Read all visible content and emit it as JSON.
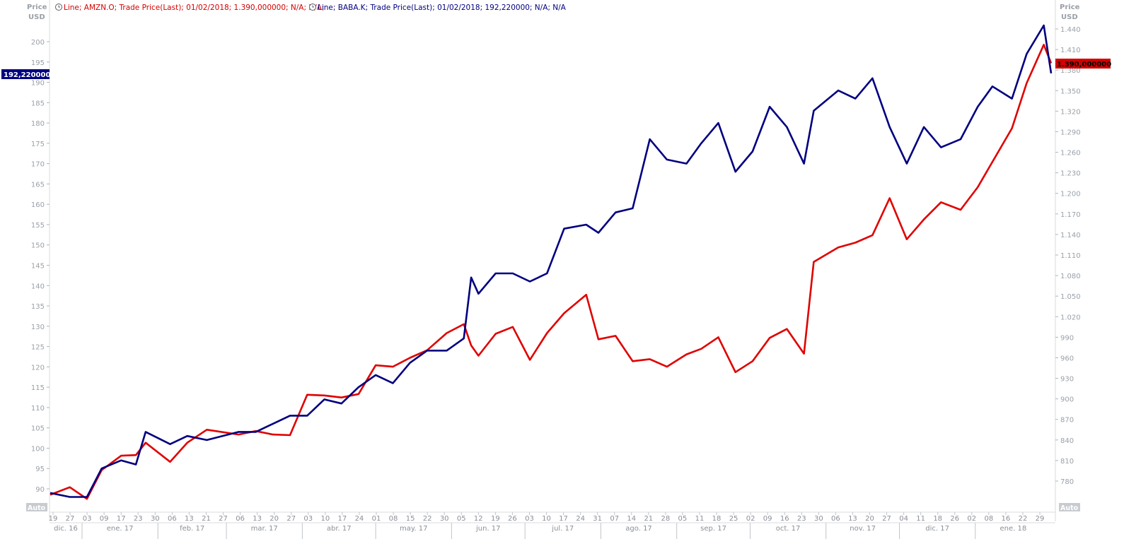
{
  "legend": [
    {
      "text": "Line; AMZN.O; Trade Price(Last); 01/02/2018; 1.390,000000; N/A; N/A;",
      "color": "#d40000",
      "icon": "clock-icon"
    },
    {
      "text": "Line; BABA.K; Trade Price(Last); 01/02/2018; 192,220000; N/A; N/A",
      "color": "#000080",
      "icon": "clock-icon"
    }
  ],
  "left_axis": {
    "title_line1": "Price",
    "title_line2": "USD",
    "auto_label": "Auto"
  },
  "right_axis": {
    "title_line1": "Price",
    "title_line2": "USD",
    "auto_label": "Auto"
  },
  "tags": {
    "left": {
      "text": "192,220000",
      "color": "#000080"
    },
    "right": {
      "text": "1.390,000000",
      "color": "#d40000"
    }
  },
  "colors": {
    "amzn": "#e00000",
    "baba": "#000080",
    "axis": "#9aa0a8"
  },
  "chart_data": {
    "type": "line",
    "title": "",
    "yaxis_left": {
      "series": "BABA.K",
      "ylim": [
        86,
        206
      ],
      "ticks": [
        90,
        95,
        100,
        105,
        110,
        115,
        120,
        125,
        130,
        135,
        140,
        145,
        150,
        155,
        160,
        165,
        170,
        175,
        180,
        185,
        190,
        195,
        200
      ]
    },
    "yaxis_right": {
      "series": "AMZN.O",
      "ylim": [
        740,
        1470
      ],
      "ticks": [
        "780",
        "810",
        "840",
        "870",
        "900",
        "930",
        "960",
        "990",
        "1.020",
        "1.050",
        "1.080",
        "1.110",
        "1.140",
        "1.170",
        "1.200",
        "1.230",
        "1.260",
        "1.290",
        "1.320",
        "1.350",
        "1.380",
        "1.410",
        "1.440"
      ],
      "tick_values": [
        780,
        810,
        840,
        870,
        900,
        930,
        960,
        990,
        1020,
        1050,
        1080,
        1110,
        1140,
        1170,
        1200,
        1230,
        1260,
        1290,
        1320,
        1350,
        1380,
        1410,
        1440
      ]
    },
    "x_day_ticks": [
      "19",
      "27",
      "03",
      "09",
      "17",
      "23",
      "30",
      "06",
      "13",
      "21",
      "27",
      "06",
      "13",
      "20",
      "27",
      "03",
      "10",
      "17",
      "24",
      "01",
      "08",
      "15",
      "22",
      "30",
      "05",
      "12",
      "19",
      "26",
      "03",
      "10",
      "17",
      "24",
      "31",
      "07",
      "14",
      "21",
      "28",
      "05",
      "11",
      "18",
      "25",
      "02",
      "09",
      "16",
      "23",
      "30",
      "06",
      "13",
      "20",
      "27",
      "04",
      "11",
      "18",
      "26",
      "02",
      "08",
      "16",
      "22",
      "29"
    ],
    "x_months": [
      "dic. 16",
      "ene. 17",
      "feb. 17",
      "mar. 17",
      "abr. 17",
      "may. 17",
      "jun. 17",
      "jul. 17",
      "ago. 17",
      "sep. 17",
      "oct. 17",
      "nov. 17",
      "dic. 17",
      "ene. 18"
    ],
    "series": [
      {
        "name": "AMZN.O",
        "axis": "right",
        "values": [
          {
            "x": "2016-12-19",
            "y": 760
          },
          {
            "x": "2016-12-27",
            "y": 771
          },
          {
            "x": "2017-01-03",
            "y": 754
          },
          {
            "x": "2017-01-09",
            "y": 796
          },
          {
            "x": "2017-01-17",
            "y": 817
          },
          {
            "x": "2017-01-23",
            "y": 818
          },
          {
            "x": "2017-01-27",
            "y": 836
          },
          {
            "x": "2017-02-06",
            "y": 808
          },
          {
            "x": "2017-02-13",
            "y": 836
          },
          {
            "x": "2017-02-21",
            "y": 855
          },
          {
            "x": "2017-03-06",
            "y": 848
          },
          {
            "x": "2017-03-13",
            "y": 853
          },
          {
            "x": "2017-03-20",
            "y": 848
          },
          {
            "x": "2017-03-27",
            "y": 847
          },
          {
            "x": "2017-04-03",
            "y": 906
          },
          {
            "x": "2017-04-10",
            "y": 905
          },
          {
            "x": "2017-04-17",
            "y": 902
          },
          {
            "x": "2017-04-24",
            "y": 907
          },
          {
            "x": "2017-05-01",
            "y": 949
          },
          {
            "x": "2017-05-08",
            "y": 947
          },
          {
            "x": "2017-05-15",
            "y": 960
          },
          {
            "x": "2017-05-22",
            "y": 971
          },
          {
            "x": "2017-05-30",
            "y": 996
          },
          {
            "x": "2017-06-06",
            "y": 1009
          },
          {
            "x": "2017-06-09",
            "y": 978
          },
          {
            "x": "2017-06-12",
            "y": 963
          },
          {
            "x": "2017-06-19",
            "y": 995
          },
          {
            "x": "2017-06-26",
            "y": 1005
          },
          {
            "x": "2017-07-03",
            "y": 957
          },
          {
            "x": "2017-07-10",
            "y": 996
          },
          {
            "x": "2017-07-17",
            "y": 1025
          },
          {
            "x": "2017-07-26",
            "y": 1052
          },
          {
            "x": "2017-07-31",
            "y": 987
          },
          {
            "x": "2017-08-07",
            "y": 992
          },
          {
            "x": "2017-08-14",
            "y": 955
          },
          {
            "x": "2017-08-21",
            "y": 958
          },
          {
            "x": "2017-08-28",
            "y": 947
          },
          {
            "x": "2017-09-05",
            "y": 965
          },
          {
            "x": "2017-09-11",
            "y": 973
          },
          {
            "x": "2017-09-18",
            "y": 990
          },
          {
            "x": "2017-09-25",
            "y": 939
          },
          {
            "x": "2017-10-02",
            "y": 955
          },
          {
            "x": "2017-10-09",
            "y": 989
          },
          {
            "x": "2017-10-16",
            "y": 1002
          },
          {
            "x": "2017-10-23",
            "y": 966
          },
          {
            "x": "2017-10-27",
            "y": 1100
          },
          {
            "x": "2017-11-06",
            "y": 1121
          },
          {
            "x": "2017-11-13",
            "y": 1128
          },
          {
            "x": "2017-11-20",
            "y": 1139
          },
          {
            "x": "2017-11-27",
            "y": 1193
          },
          {
            "x": "2017-12-04",
            "y": 1133
          },
          {
            "x": "2017-12-11",
            "y": 1162
          },
          {
            "x": "2017-12-18",
            "y": 1187
          },
          {
            "x": "2017-12-26",
            "y": 1176
          },
          {
            "x": "2018-01-02",
            "y": 1209
          },
          {
            "x": "2018-01-08",
            "y": 1246
          },
          {
            "x": "2018-01-16",
            "y": 1295
          },
          {
            "x": "2018-01-22",
            "y": 1361
          },
          {
            "x": "2018-01-29",
            "y": 1417
          },
          {
            "x": "2018-02-01",
            "y": 1390
          }
        ]
      },
      {
        "name": "BABA.K",
        "axis": "left",
        "values": [
          {
            "x": "2016-12-19",
            "y": 89
          },
          {
            "x": "2016-12-27",
            "y": 88
          },
          {
            "x": "2017-01-03",
            "y": 88
          },
          {
            "x": "2017-01-09",
            "y": 95
          },
          {
            "x": "2017-01-17",
            "y": 97
          },
          {
            "x": "2017-01-23",
            "y": 96
          },
          {
            "x": "2017-01-27",
            "y": 104
          },
          {
            "x": "2017-02-06",
            "y": 101
          },
          {
            "x": "2017-02-13",
            "y": 103
          },
          {
            "x": "2017-02-21",
            "y": 102
          },
          {
            "x": "2017-03-06",
            "y": 104
          },
          {
            "x": "2017-03-13",
            "y": 104
          },
          {
            "x": "2017-03-20",
            "y": 106
          },
          {
            "x": "2017-03-27",
            "y": 108
          },
          {
            "x": "2017-04-03",
            "y": 108
          },
          {
            "x": "2017-04-10",
            "y": 112
          },
          {
            "x": "2017-04-17",
            "y": 111
          },
          {
            "x": "2017-04-24",
            "y": 115
          },
          {
            "x": "2017-05-01",
            "y": 118
          },
          {
            "x": "2017-05-08",
            "y": 116
          },
          {
            "x": "2017-05-15",
            "y": 121
          },
          {
            "x": "2017-05-22",
            "y": 124
          },
          {
            "x": "2017-05-30",
            "y": 124
          },
          {
            "x": "2017-06-06",
            "y": 127
          },
          {
            "x": "2017-06-09",
            "y": 142
          },
          {
            "x": "2017-06-12",
            "y": 138
          },
          {
            "x": "2017-06-19",
            "y": 143
          },
          {
            "x": "2017-06-26",
            "y": 143
          },
          {
            "x": "2017-07-03",
            "y": 141
          },
          {
            "x": "2017-07-10",
            "y": 143
          },
          {
            "x": "2017-07-17",
            "y": 154
          },
          {
            "x": "2017-07-26",
            "y": 155
          },
          {
            "x": "2017-07-31",
            "y": 153
          },
          {
            "x": "2017-08-07",
            "y": 158
          },
          {
            "x": "2017-08-14",
            "y": 159
          },
          {
            "x": "2017-08-21",
            "y": 176
          },
          {
            "x": "2017-08-28",
            "y": 171
          },
          {
            "x": "2017-09-05",
            "y": 170
          },
          {
            "x": "2017-09-11",
            "y": 175
          },
          {
            "x": "2017-09-18",
            "y": 180
          },
          {
            "x": "2017-09-25",
            "y": 168
          },
          {
            "x": "2017-10-02",
            "y": 173
          },
          {
            "x": "2017-10-09",
            "y": 184
          },
          {
            "x": "2017-10-16",
            "y": 179
          },
          {
            "x": "2017-10-23",
            "y": 170
          },
          {
            "x": "2017-10-27",
            "y": 183
          },
          {
            "x": "2017-11-06",
            "y": 188
          },
          {
            "x": "2017-11-13",
            "y": 186
          },
          {
            "x": "2017-11-20",
            "y": 191
          },
          {
            "x": "2017-11-27",
            "y": 179
          },
          {
            "x": "2017-12-04",
            "y": 170
          },
          {
            "x": "2017-12-11",
            "y": 179
          },
          {
            "x": "2017-12-18",
            "y": 174
          },
          {
            "x": "2017-12-26",
            "y": 176
          },
          {
            "x": "2018-01-02",
            "y": 184
          },
          {
            "x": "2018-01-08",
            "y": 189
          },
          {
            "x": "2018-01-16",
            "y": 186
          },
          {
            "x": "2018-01-22",
            "y": 197
          },
          {
            "x": "2018-01-29",
            "y": 204
          },
          {
            "x": "2018-02-01",
            "y": 192.22
          }
        ]
      }
    ]
  }
}
